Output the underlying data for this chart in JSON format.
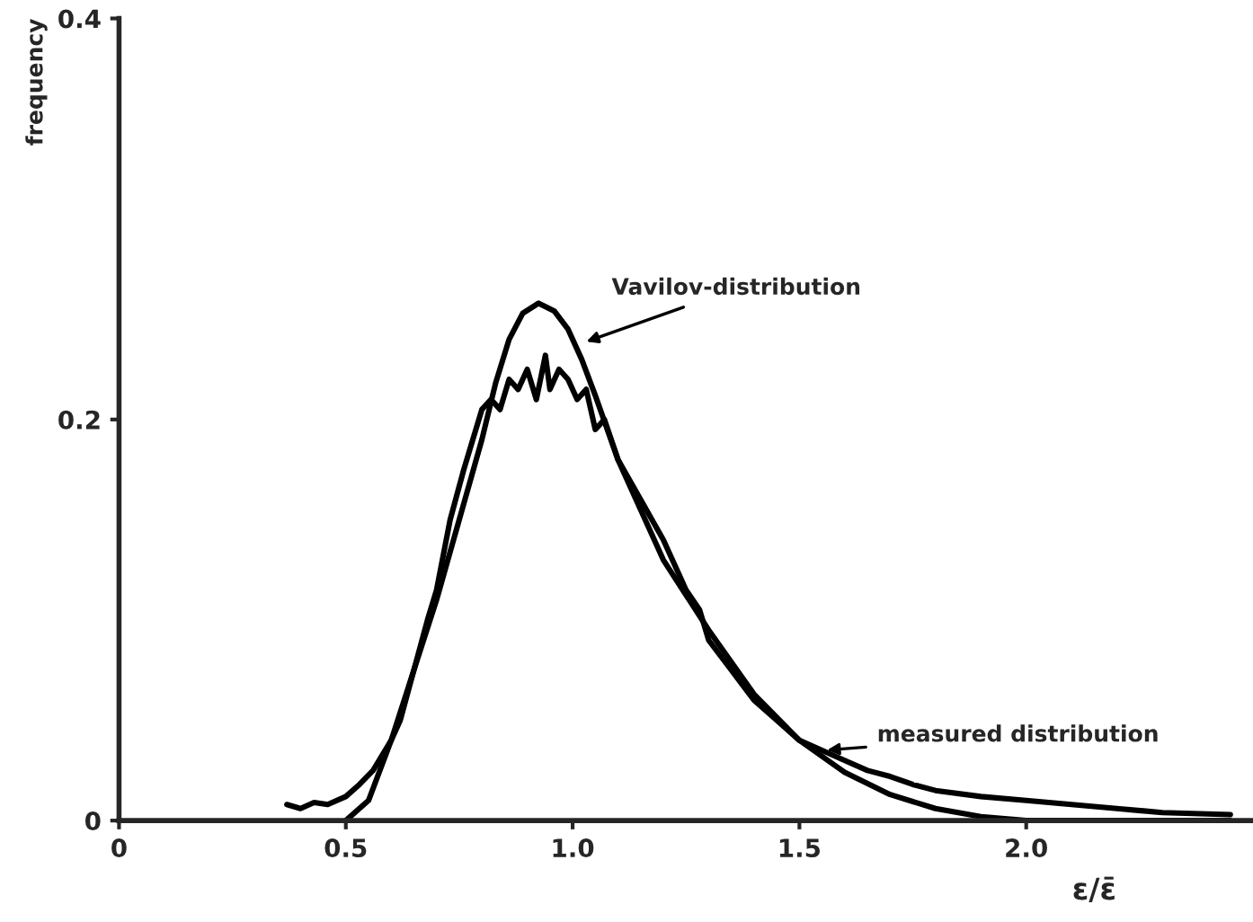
{
  "chart_data": {
    "type": "line",
    "xlabel": "ε/ε̄",
    "ylabel": "frequency",
    "xlim": [
      0,
      2.5
    ],
    "ylim": [
      0,
      0.4
    ],
    "xticks": [
      0,
      {
        "value": 0.5,
        "label": "0.5"
      },
      {
        "value": 1,
        "label": "1.0"
      },
      {
        "value": 1.5,
        "label": "1.5"
      },
      {
        "value": 2,
        "label": "2.0"
      }
    ],
    "yticks": [
      0,
      0.2,
      0.4
    ],
    "grid": false,
    "marker": "none",
    "line_style": "solid",
    "series": [
      {
        "color": "#000000",
        "x": [
          0.5,
          0.55,
          0.6,
          0.65,
          0.7,
          0.75,
          0.8,
          0.83,
          0.86,
          0.89,
          0.925,
          0.96,
          0.99,
          1.02,
          1.05,
          1.1,
          1.15,
          1.2,
          1.3,
          1.4,
          1.5,
          1.6,
          1.7,
          1.8,
          1.9,
          2.0,
          2.2,
          2.45
        ],
        "values": [
          0,
          0.01,
          0.04,
          0.075,
          0.11,
          0.15,
          0.19,
          0.218,
          0.24,
          0.253,
          0.258,
          0.254,
          0.245,
          0.23,
          0.212,
          0.18,
          0.155,
          0.13,
          0.095,
          0.063,
          0.04,
          0.024,
          0.013,
          0.006,
          0.002,
          0,
          0,
          0
        ]
      },
      {
        "color": "#000000",
        "x": [
          0.37,
          0.4,
          0.43,
          0.46,
          0.5,
          0.53,
          0.56,
          0.6,
          0.62,
          0.65,
          0.68,
          0.7,
          0.73,
          0.76,
          0.8,
          0.82,
          0.84,
          0.86,
          0.88,
          0.9,
          0.92,
          0.94,
          0.95,
          0.97,
          0.99,
          1.01,
          1.03,
          1.05,
          1.07,
          1.1,
          1.15,
          1.2,
          1.25,
          1.28,
          1.3,
          1.35,
          1.4,
          1.45,
          1.5,
          1.55,
          1.6,
          1.65,
          1.7,
          1.75,
          1.8,
          1.9,
          2.0,
          2.1,
          2.2,
          2.3,
          2.45
        ],
        "values": [
          0.008,
          0.006,
          0.009,
          0.008,
          0.012,
          0.018,
          0.025,
          0.04,
          0.05,
          0.075,
          0.1,
          0.115,
          0.15,
          0.175,
          0.205,
          0.21,
          0.205,
          0.22,
          0.215,
          0.225,
          0.21,
          0.232,
          0.215,
          0.225,
          0.22,
          0.21,
          0.215,
          0.195,
          0.2,
          0.18,
          0.16,
          0.14,
          0.115,
          0.105,
          0.09,
          0.075,
          0.06,
          0.05,
          0.04,
          0.035,
          0.03,
          0.025,
          0.022,
          0.018,
          0.015,
          0.012,
          0.01,
          0.008,
          0.006,
          0.004,
          0.003
        ]
      }
    ],
    "annotations": [
      {
        "text": "Vavilov-distribution",
        "x": 1.02,
        "y": 0.238
      },
      {
        "text": "measured distribution",
        "x": 1.55,
        "y": 0.035
      }
    ]
  }
}
